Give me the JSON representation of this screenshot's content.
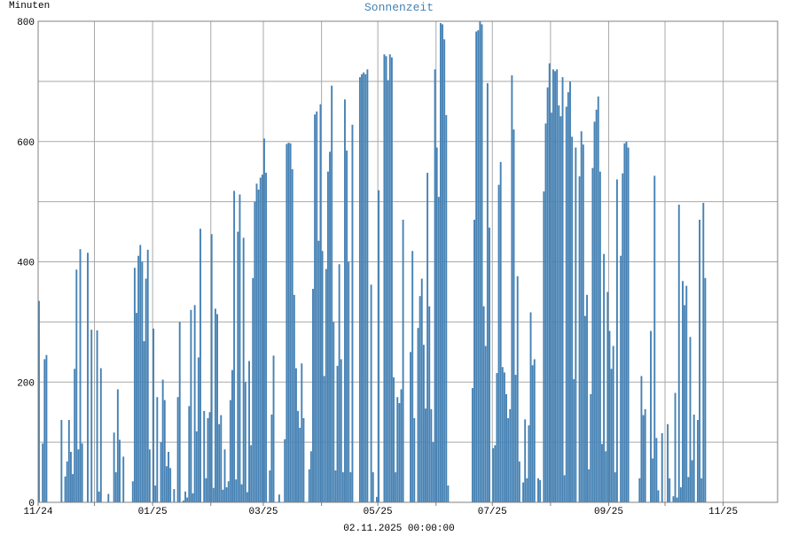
{
  "chart_data": {
    "type": "bar",
    "title": "Sonnenzeit",
    "ylabel": "Minuten",
    "xlabel": "02.11.2025 00:00:00",
    "ylim": [
      0,
      800
    ],
    "yticks": [
      "0",
      "200",
      "400",
      "600",
      "800"
    ],
    "x_ticklabels": [
      "11/24",
      "01/25",
      "03/25",
      "05/25",
      "07/25",
      "09/25",
      "11/25"
    ],
    "x_range": [
      "2024-11-01",
      "2025-11-30"
    ],
    "grid": true,
    "colors": {
      "bar": "#4682b4",
      "title": "#4682b4",
      "grid": "#a9a9a9",
      "axis": "#808080",
      "text": "#000000"
    },
    "day_start": "2024-11-01",
    "values": [
      335,
      0,
      98,
      238,
      245,
      0,
      0,
      0,
      0,
      0,
      0,
      0,
      137,
      0,
      43,
      68,
      137,
      84,
      47,
      222,
      387,
      88,
      421,
      98,
      0,
      0,
      415,
      0,
      287,
      0,
      0,
      286,
      18,
      223,
      0,
      0,
      0,
      14,
      0,
      0,
      116,
      50,
      188,
      104,
      0,
      76,
      0,
      0,
      0,
      0,
      35,
      390,
      315,
      410,
      428,
      400,
      268,
      372,
      420,
      88,
      0,
      289,
      28,
      175,
      0,
      100,
      204,
      170,
      60,
      84,
      57,
      0,
      22,
      0,
      175,
      300,
      0,
      3,
      18,
      8,
      160,
      320,
      15,
      328,
      118,
      241,
      455,
      0,
      152,
      40,
      140,
      150,
      446,
      24,
      322,
      313,
      130,
      145,
      21,
      88,
      25,
      35,
      170,
      220,
      518,
      38,
      450,
      512,
      30,
      440,
      200,
      17,
      235,
      95,
      373,
      500,
      530,
      520,
      540,
      545,
      605,
      548,
      0,
      53,
      146,
      244,
      0,
      0,
      13,
      0,
      0,
      105,
      596,
      598,
      597,
      554,
      345,
      223,
      152,
      124,
      231,
      140,
      0,
      0,
      55,
      85,
      355,
      645,
      650,
      435,
      662,
      418,
      210,
      388,
      550,
      583,
      693,
      300,
      53,
      227,
      396,
      238,
      50,
      670,
      585,
      400,
      50,
      628,
      0,
      0,
      0,
      707,
      712,
      715,
      712,
      720,
      0,
      362,
      50,
      0,
      9,
      519,
      0,
      0,
      745,
      742,
      702,
      745,
      740,
      208,
      50,
      175,
      165,
      188,
      470,
      0,
      0,
      0,
      250,
      418,
      140,
      0,
      290,
      343,
      372,
      262,
      156,
      548,
      326,
      155,
      100,
      720,
      590,
      508,
      797,
      795,
      770,
      644,
      28,
      0,
      0,
      0,
      0,
      0,
      0,
      0,
      0,
      0,
      0,
      0,
      0,
      190,
      470,
      783,
      785,
      800,
      795,
      326,
      260,
      697,
      457,
      0,
      90,
      95,
      215,
      528,
      566,
      225,
      216,
      180,
      140,
      155,
      710,
      620,
      212,
      376,
      68,
      0,
      33,
      138,
      40,
      128,
      316,
      228,
      238,
      0,
      40,
      37,
      0,
      517,
      630,
      690,
      730,
      648,
      720,
      717,
      720,
      660,
      642,
      707,
      45,
      658,
      682,
      700,
      608,
      205,
      590,
      0,
      542,
      617,
      595,
      310,
      345,
      55,
      180,
      556,
      633,
      653,
      675,
      550,
      97,
      413,
      85,
      350,
      285,
      222,
      260,
      50,
      537,
      0,
      410,
      547,
      597,
      600,
      590,
      0,
      0,
      0,
      0,
      0,
      40,
      210,
      145,
      155,
      0,
      0,
      285,
      73,
      543,
      107,
      20,
      0,
      115,
      0,
      0,
      130,
      40,
      0,
      10,
      182,
      8,
      495,
      25,
      368,
      328,
      360,
      42,
      275,
      70,
      146,
      0,
      137,
      470,
      40,
      498,
      373
    ]
  }
}
